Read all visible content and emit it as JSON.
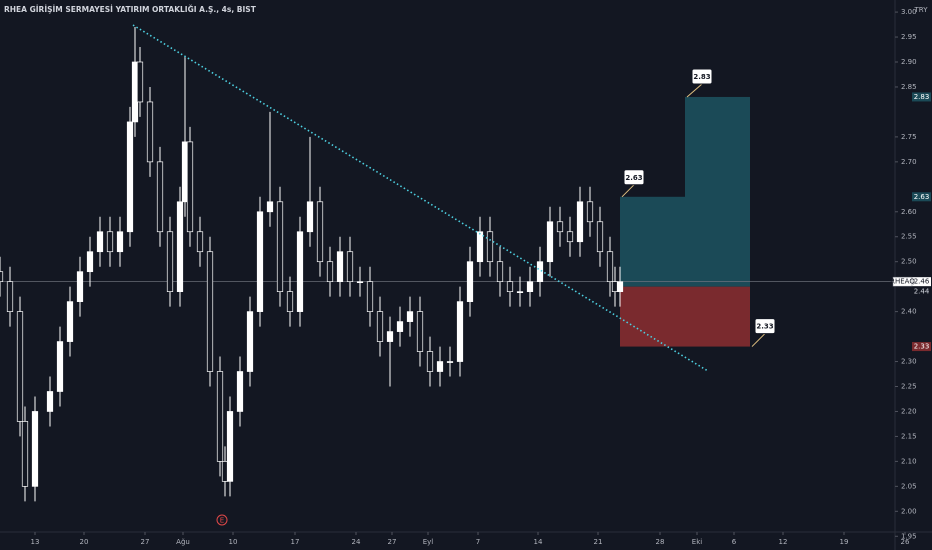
{
  "chart_data": {
    "type": "candlestick",
    "title": "RHEA GİRİŞİM SERMAYESİ YATIRIM ORTAKLIĞI A.Ş., 4s, BIST",
    "currency": "TRY",
    "x": [
      0,
      2,
      4,
      5,
      7,
      10,
      12,
      14,
      16,
      18,
      20,
      22,
      24,
      26,
      27,
      28,
      30,
      32,
      34,
      36,
      37,
      38,
      40,
      42,
      44,
      45,
      46,
      48,
      50,
      52,
      54,
      56,
      58,
      60,
      62,
      64,
      66,
      68,
      70,
      72,
      74,
      76,
      78,
      80,
      82,
      84,
      86,
      88,
      90,
      92,
      94,
      96,
      98,
      100,
      102,
      104,
      106,
      108,
      110,
      112,
      114,
      116,
      118,
      120,
      122,
      123,
      124
    ],
    "open": [
      2.48,
      2.46,
      2.4,
      2.18,
      2.05,
      2.2,
      2.24,
      2.34,
      2.42,
      2.48,
      2.52,
      2.56,
      2.52,
      2.56,
      2.78,
      2.9,
      2.82,
      2.7,
      2.56,
      2.44,
      2.62,
      2.74,
      2.56,
      2.52,
      2.28,
      2.1,
      2.06,
      2.2,
      2.28,
      2.4,
      2.6,
      2.62,
      2.44,
      2.4,
      2.56,
      2.62,
      2.5,
      2.46,
      2.52,
      2.46,
      2.46,
      2.4,
      2.34,
      2.36,
      2.38,
      2.4,
      2.32,
      2.28,
      2.3,
      2.3,
      2.42,
      2.5,
      2.56,
      2.5,
      2.46,
      2.44,
      2.44,
      2.46,
      2.5,
      2.58,
      2.56,
      2.54,
      2.62,
      2.58,
      2.52,
      2.46,
      2.44
    ],
    "high": [
      2.51,
      2.49,
      2.43,
      2.21,
      2.23,
      2.27,
      2.37,
      2.45,
      2.51,
      2.55,
      2.59,
      2.59,
      2.59,
      2.81,
      2.97,
      2.93,
      2.85,
      2.73,
      2.59,
      2.65,
      2.91,
      2.77,
      2.59,
      2.55,
      2.31,
      2.13,
      2.23,
      2.31,
      2.43,
      2.63,
      2.8,
      2.65,
      2.47,
      2.59,
      2.75,
      2.65,
      2.53,
      2.55,
      2.55,
      2.49,
      2.49,
      2.43,
      2.39,
      2.41,
      2.43,
      2.43,
      2.35,
      2.33,
      2.33,
      2.45,
      2.53,
      2.59,
      2.59,
      2.53,
      2.49,
      2.47,
      2.49,
      2.53,
      2.61,
      2.61,
      2.59,
      2.65,
      2.65,
      2.61,
      2.55,
      2.49,
      2.49
    ],
    "low": [
      2.43,
      2.37,
      2.15,
      2.02,
      2.02,
      2.17,
      2.21,
      2.31,
      2.39,
      2.45,
      2.49,
      2.49,
      2.49,
      2.53,
      2.75,
      2.79,
      2.67,
      2.53,
      2.41,
      2.41,
      2.59,
      2.53,
      2.49,
      2.25,
      2.07,
      2.03,
      2.03,
      2.17,
      2.25,
      2.37,
      2.57,
      2.41,
      2.37,
      2.37,
      2.53,
      2.47,
      2.43,
      2.43,
      2.43,
      2.43,
      2.37,
      2.31,
      2.25,
      2.33,
      2.35,
      2.29,
      2.25,
      2.25,
      2.27,
      2.27,
      2.39,
      2.47,
      2.47,
      2.43,
      2.41,
      2.41,
      2.41,
      2.43,
      2.47,
      2.53,
      2.51,
      2.51,
      2.55,
      2.49,
      2.43,
      2.41,
      2.41
    ],
    "close": [
      2.46,
      2.4,
      2.18,
      2.05,
      2.2,
      2.24,
      2.34,
      2.42,
      2.48,
      2.52,
      2.56,
      2.52,
      2.56,
      2.78,
      2.9,
      2.82,
      2.7,
      2.56,
      2.44,
      2.62,
      2.74,
      2.56,
      2.52,
      2.28,
      2.1,
      2.06,
      2.2,
      2.28,
      2.4,
      2.6,
      2.62,
      2.44,
      2.4,
      2.56,
      2.62,
      2.5,
      2.46,
      2.52,
      2.46,
      2.46,
      2.4,
      2.34,
      2.36,
      2.38,
      2.4,
      2.32,
      2.28,
      2.3,
      2.3,
      2.42,
      2.5,
      2.56,
      2.5,
      2.46,
      2.44,
      2.44,
      2.46,
      2.5,
      2.58,
      2.56,
      2.54,
      2.62,
      2.58,
      2.52,
      2.46,
      2.44,
      2.46
    ],
    "up_color": "#ffffff",
    "down_color": "#131722",
    "xlim": [
      0,
      181
    ],
    "ylim": [
      1.9225,
      3.0242
    ],
    "xticks": [
      {
        "value": 7,
        "label": "13"
      },
      {
        "value": 16.8,
        "label": "20"
      },
      {
        "value": 29,
        "label": "27"
      },
      {
        "value": 36.6,
        "label": "Ağu"
      },
      {
        "value": 46.6,
        "label": "10"
      },
      {
        "value": 59,
        "label": "17"
      },
      {
        "value": 71.2,
        "label": "24"
      },
      {
        "value": 78.4,
        "label": "27"
      },
      {
        "value": 85.6,
        "label": "Eyl"
      },
      {
        "value": 95.6,
        "label": "7"
      },
      {
        "value": 107.6,
        "label": "14"
      },
      {
        "value": 119.6,
        "label": "21"
      },
      {
        "value": 132,
        "label": "28"
      },
      {
        "value": 139.4,
        "label": "Eki"
      },
      {
        "value": 146.8,
        "label": "6"
      },
      {
        "value": 156.6,
        "label": "12"
      },
      {
        "value": 168.8,
        "label": "19"
      },
      {
        "value": 181,
        "label": "26"
      }
    ],
    "yticks": [
      {
        "value": 3,
        "label": "3.00"
      },
      2.95,
      {
        "value": 2.9,
        "label": "2.90"
      },
      2.85,
      2.75,
      {
        "value": 2.7,
        "label": "2.70"
      },
      {
        "value": 2.6,
        "label": "2.60"
      },
      2.55,
      {
        "value": 2.5,
        "label": "2.50"
      },
      {
        "value": 2.4,
        "label": "2.40"
      },
      {
        "value": 2.3,
        "label": "2.30"
      },
      2.25,
      {
        "value": 2.2,
        "label": "2.20"
      },
      2.15,
      {
        "value": 2.1,
        "label": "2.10"
      },
      2.05,
      {
        "value": 2,
        "label": "2.00"
      },
      1.95
    ],
    "trendline": {
      "x": [
        26.6,
        141.6
      ],
      "y": [
        2.974,
        2.281
      ],
      "color": "#4dd0e1"
    },
    "position": {
      "x": [
        124,
        137,
        150
      ],
      "entry": 2.45,
      "target": [
        2.63,
        2.83
      ],
      "stop": 2.33,
      "target_color": "#1b4a57",
      "stop_color": "#7a2a2e"
    },
    "price_line": {
      "symbol": "RHEAQ",
      "value": 2.46,
      "secondary": 2.44
    },
    "event_marker": {
      "label": "E",
      "x": 44.4
    }
  }
}
